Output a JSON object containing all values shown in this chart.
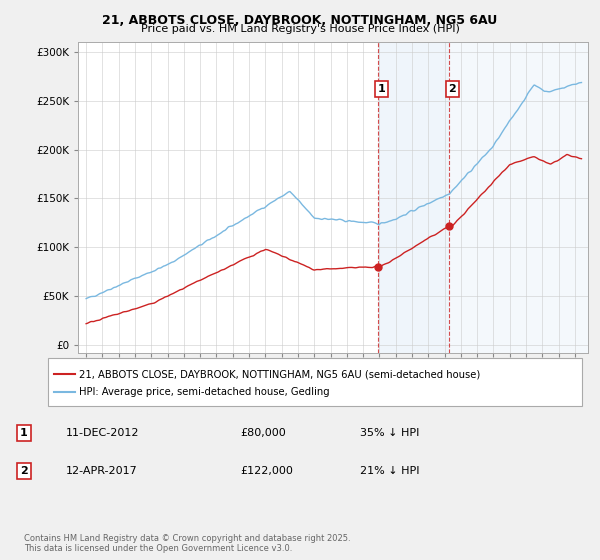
{
  "title_line1": "21, ABBOTS CLOSE, DAYBROOK, NOTTINGHAM, NG5 6AU",
  "title_line2": "Price paid vs. HM Land Registry's House Price Index (HPI)",
  "legend_line1": "21, ABBOTS CLOSE, DAYBROOK, NOTTINGHAM, NG5 6AU (semi-detached house)",
  "legend_line2": "HPI: Average price, semi-detached house, Gedling",
  "annotation1_label": "1",
  "annotation1_date": "11-DEC-2012",
  "annotation1_price": "£80,000",
  "annotation1_pct": "35% ↓ HPI",
  "annotation2_label": "2",
  "annotation2_date": "12-APR-2017",
  "annotation2_price": "£122,000",
  "annotation2_pct": "21% ↓ HPI",
  "footer": "Contains HM Land Registry data © Crown copyright and database right 2025.\nThis data is licensed under the Open Government Licence v3.0.",
  "hpi_color": "#7ab8e0",
  "price_color": "#cc2222",
  "sale1_x": 2012.92,
  "sale1_y": 80000,
  "sale2_x": 2017.28,
  "sale2_y": 122000,
  "xlim_left": 1994.5,
  "xlim_right": 2025.8,
  "ylim_bottom": -8000,
  "ylim_top": 310000,
  "vline_color": "#cc2222",
  "shade_color": "#aaccee",
  "background_color": "#f0f0f0",
  "plot_bg_color": "#ffffff",
  "grid_color": "#cccccc",
  "yticks": [
    0,
    50000,
    100000,
    150000,
    200000,
    250000,
    300000
  ],
  "xtick_start": 1995,
  "xtick_end": 2026
}
